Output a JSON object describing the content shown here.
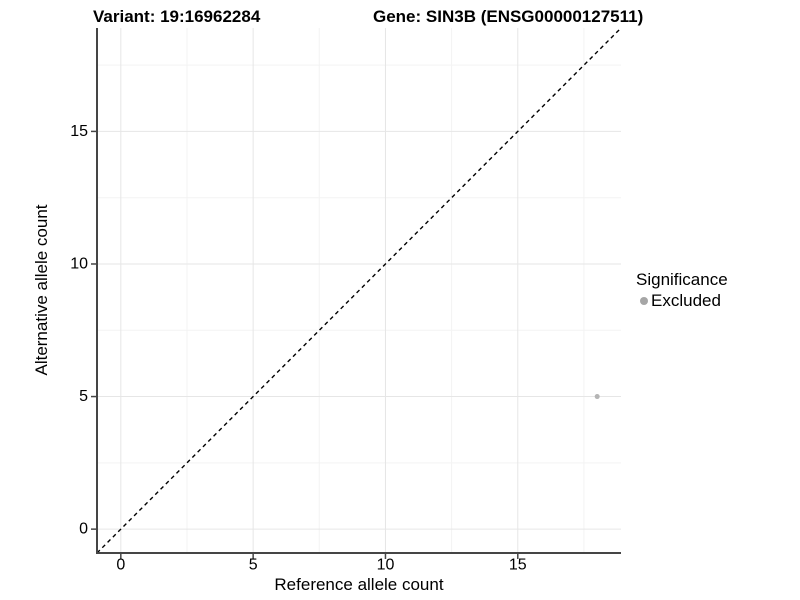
{
  "titles": {
    "variant": "Variant: 19:16962284",
    "gene": "Gene: SIN3B (ENSG00000127511)"
  },
  "chart_data": {
    "type": "scatter",
    "xlabel": "Reference allele count",
    "ylabel": "Alternative allele count",
    "xlim": [
      -0.9,
      18.9
    ],
    "ylim": [
      -0.9,
      18.9
    ],
    "x_ticks": [
      0,
      5,
      10,
      15
    ],
    "y_ticks": [
      0,
      5,
      10,
      15
    ],
    "x_minor_ticks": [
      2.5,
      7.5,
      12.5,
      17.5
    ],
    "y_minor_ticks": [
      2.5,
      7.5,
      12.5,
      17.5
    ],
    "grid": "on",
    "series": [
      {
        "name": "Excluded",
        "color": "#b5b5b5",
        "points": [
          {
            "x": 18,
            "y": 5
          }
        ]
      }
    ],
    "reference_line": {
      "style": "dashed",
      "color": "#000000",
      "from": [
        -0.9,
        -0.9
      ],
      "to": [
        18.9,
        18.9
      ]
    },
    "legend": {
      "title": "Significance",
      "position": "right",
      "entries": [
        {
          "label": "Excluded",
          "color": "#a6a6a6"
        }
      ]
    }
  },
  "colors": {
    "background": "#ffffff",
    "text": "#000000",
    "axis_line": "#454545",
    "grid_major": "#e6e6e6",
    "grid_minor": "#f3f3f3"
  }
}
